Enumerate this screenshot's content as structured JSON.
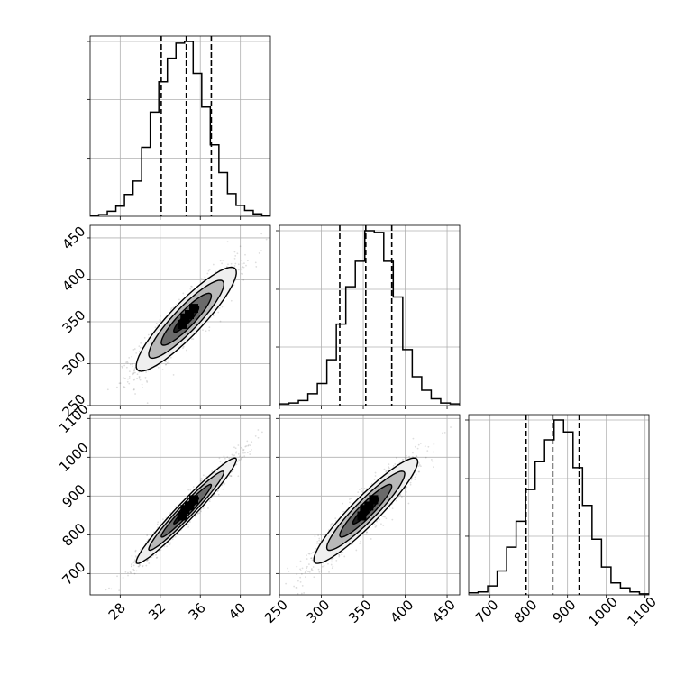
{
  "chart_data": {
    "type": "corner",
    "grid": true,
    "parameters": [
      {
        "name": "",
        "range": [
          25,
          43
        ],
        "ticks": [
          28,
          32,
          36,
          40
        ],
        "quantiles": [
          32.1,
          34.6,
          37.1
        ],
        "hist_counts": [
          1,
          2,
          6,
          12,
          26,
          42,
          82,
          124,
          160,
          188,
          206,
          208,
          170,
          130,
          85,
          52,
          27,
          13,
          7,
          3,
          1
        ]
      },
      {
        "name": "",
        "range": [
          250,
          465
        ],
        "ticks": [
          250,
          300,
          350,
          400,
          450
        ],
        "quantiles": [
          322,
          353,
          384
        ],
        "hist_counts": [
          2,
          3,
          6,
          14,
          26,
          54,
          96,
          140,
          170,
          206,
          204,
          170,
          128,
          66,
          34,
          18,
          8,
          3,
          2
        ]
      },
      {
        "name": "",
        "range": [
          645,
          1110
        ],
        "ticks": [
          700,
          800,
          900,
          1000,
          1100
        ],
        "quantiles": [
          793,
          862,
          930
        ],
        "hist_counts": [
          2,
          3,
          9,
          24,
          48,
          74,
          106,
          134,
          156,
          176,
          164,
          128,
          90,
          56,
          28,
          12,
          7,
          3,
          1
        ]
      }
    ],
    "pairs": [
      {
        "x_param": 0,
        "y_param": 1,
        "center": [
          34.6,
          353
        ],
        "sd": [
          2.5,
          31
        ],
        "rho": 0.9
      },
      {
        "x_param": 0,
        "y_param": 2,
        "center": [
          34.6,
          862
        ],
        "sd": [
          2.5,
          68
        ],
        "rho": 0.97
      },
      {
        "x_param": 1,
        "y_param": 2,
        "center": [
          353,
          862
        ],
        "sd": [
          31,
          68
        ],
        "rho": 0.93
      }
    ],
    "contour_sigma_levels": [
      0.5,
      1.0,
      1.5,
      2.0
    ],
    "colors": {
      "line": "#000000",
      "grid": "#b0b0b0",
      "points": "#000000"
    }
  }
}
